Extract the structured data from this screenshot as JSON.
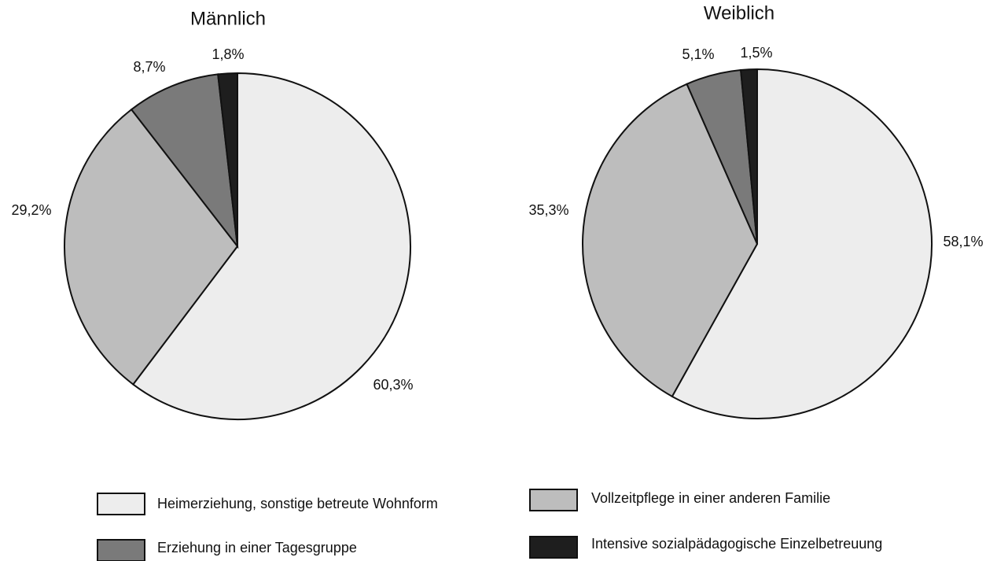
{
  "chart_data": [
    {
      "type": "pie",
      "title": "Männlich",
      "values": [
        60.3,
        29.2,
        8.7,
        1.8
      ],
      "value_labels": [
        "60,3%",
        "29,2%",
        "8,7%",
        "1,8%"
      ]
    },
    {
      "type": "pie",
      "title": "Weiblich",
      "values": [
        58.1,
        35.3,
        5.1,
        1.5
      ],
      "value_labels": [
        "58,1%",
        "35,3%",
        "5,1%",
        "1,5%"
      ]
    }
  ],
  "legend": {
    "categories": [
      "Heimerziehung, sonstige betreute Wohnform",
      "Vollzeitpflege in einer anderen Familie",
      "Erziehung in einer Tagesgruppe",
      "Intensive sozialpädagogische Einzelbetreuung"
    ],
    "colors": [
      "#ededed",
      "#bdbdbd",
      "#7a7a7a",
      "#1e1e1e"
    ]
  }
}
